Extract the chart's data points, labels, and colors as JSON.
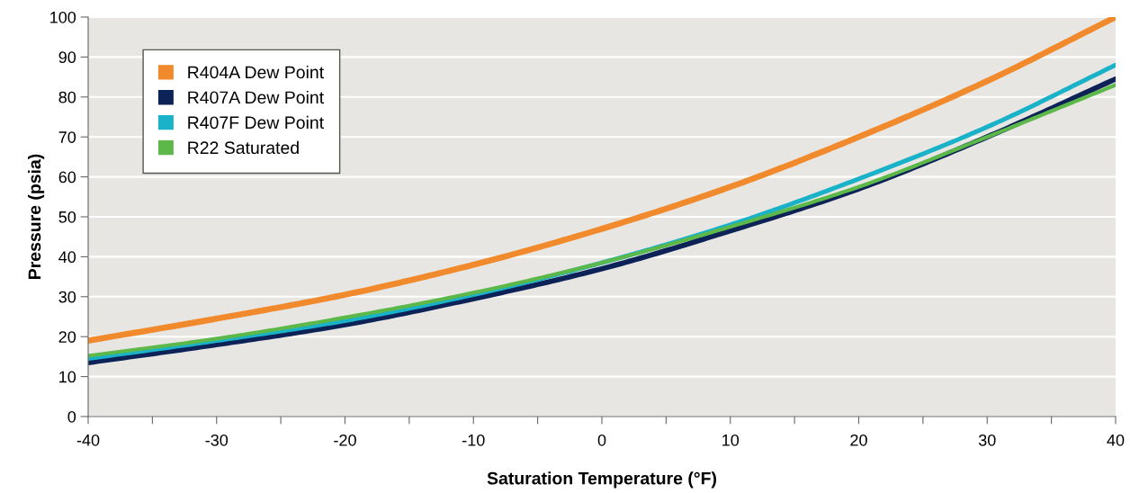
{
  "chart_data": {
    "type": "line",
    "xlabel": "Saturation Temperature (°F)",
    "ylabel": "Pressure (psia)",
    "x": [
      -40,
      -30,
      -20,
      -10,
      0,
      10,
      20,
      30,
      40
    ],
    "series": [
      {
        "name": "R404A Dew Point",
        "color": "#f08a2c",
        "values": [
          19,
          24.5,
          30.5,
          38,
          47,
          57.5,
          70,
          84,
          100
        ]
      },
      {
        "name": "R407A Dew Point",
        "color": "#0d2357",
        "values": [
          13.5,
          18,
          23,
          29.5,
          37,
          46.5,
          57,
          70,
          84.5
        ]
      },
      {
        "name": "R407F Dew Point",
        "color": "#19b2c8",
        "values": [
          14.5,
          19,
          24,
          30.5,
          38.5,
          48,
          59.5,
          72.5,
          88
        ]
      },
      {
        "name": "R22 Saturated",
        "color": "#5cb848",
        "values": [
          15.2,
          19.5,
          24.8,
          31,
          38.5,
          47.5,
          57.5,
          70,
          83
        ]
      }
    ],
    "xlim": [
      -40,
      40
    ],
    "ylim": [
      0,
      100
    ],
    "xticks": [
      -40,
      {
        "value": -35,
        "label": null
      },
      -30,
      {
        "value": -25,
        "label": null
      },
      -20,
      {
        "value": -15,
        "label": null
      },
      -10,
      {
        "value": -5,
        "label": null
      },
      0,
      {
        "value": 5,
        "label": null
      },
      10,
      {
        "value": 15,
        "label": null
      },
      20,
      {
        "value": 25,
        "label": null
      },
      30,
      {
        "value": 35,
        "label": null
      },
      40
    ],
    "yticks": [
      0,
      10,
      20,
      30,
      40,
      50,
      60,
      70,
      80,
      90,
      100
    ],
    "grid": "y",
    "legend": "top left",
    "marker": "none",
    "line_style": "solid"
  }
}
